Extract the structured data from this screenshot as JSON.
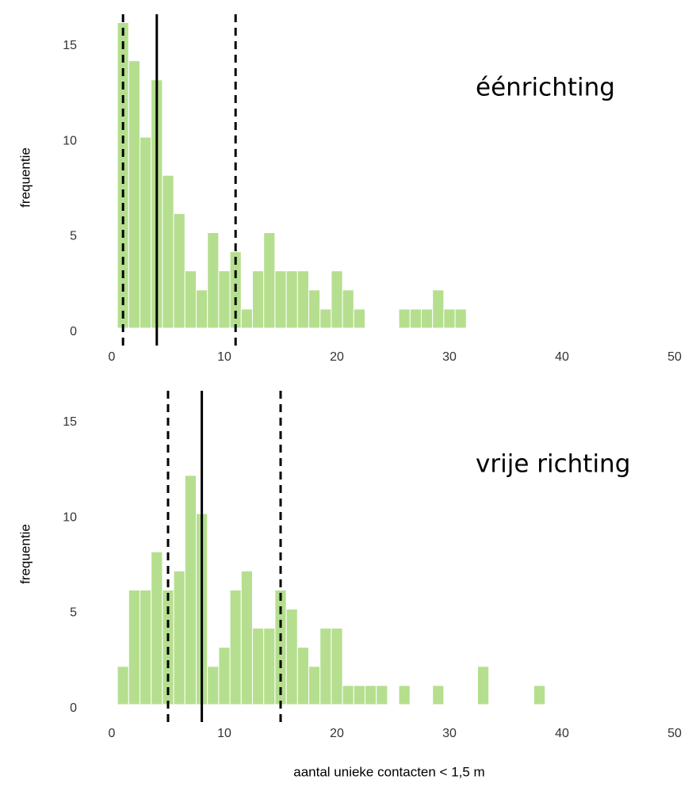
{
  "chart_data": [
    {
      "type": "histogram",
      "annotation": "éénrichting",
      "ylabel": "frequentie",
      "bins": [
        0.5,
        1.5,
        2.5,
        3.5,
        4.5,
        5.5,
        6.5,
        7.5,
        8.5,
        9.5,
        10.5,
        11.5,
        12.5,
        13.5,
        14.5,
        15.5,
        16.5,
        17.5,
        18.5,
        19.5,
        20.5,
        21.5,
        22.5,
        23.5,
        24.5,
        25.5,
        26.5,
        27.5,
        28.5,
        29.5,
        30.5,
        31.5
      ],
      "counts": [
        16,
        14,
        10,
        13,
        8,
        6,
        3,
        2,
        5,
        3,
        4,
        1,
        3,
        5,
        3,
        3,
        3,
        2,
        1,
        3,
        2,
        1,
        0,
        0,
        0,
        1,
        1,
        1,
        2,
        1,
        1
      ],
      "color": "#b5df8e",
      "vlines": [
        {
          "x": 1,
          "style": "dashed"
        },
        {
          "x": 4,
          "style": "solid"
        },
        {
          "x": 11,
          "style": "dashed"
        }
      ],
      "xlim": [
        0,
        50
      ],
      "xticks": [
        0,
        10,
        20,
        30,
        40,
        50
      ],
      "ylim": [
        0,
        16.6
      ],
      "yticks": [
        0,
        5,
        10,
        15
      ],
      "grid": false
    },
    {
      "type": "histogram",
      "annotation": "vrije richting",
      "ylabel": "frequentie",
      "xlabel": "aantal unieke contacten < 1,5 m",
      "bins": [
        0.5,
        1.5,
        2.5,
        3.5,
        4.5,
        5.5,
        6.5,
        7.5,
        8.5,
        9.5,
        10.5,
        11.5,
        12.5,
        13.5,
        14.5,
        15.5,
        16.5,
        17.5,
        18.5,
        19.5,
        20.5,
        21.5,
        22.5,
        23.5,
        24.5,
        25.5,
        26.5,
        27.5,
        28.5,
        29.5,
        30.5,
        31.5,
        32.5,
        33.5,
        34.5,
        35.5,
        36.5,
        37.5,
        38.5
      ],
      "counts": [
        2,
        6,
        6,
        8,
        6,
        7,
        12,
        10,
        2,
        3,
        6,
        7,
        4,
        4,
        6,
        5,
        3,
        2,
        4,
        4,
        1,
        1,
        1,
        1,
        0,
        1,
        0,
        0,
        1,
        0,
        0,
        0,
        2,
        0,
        0,
        0,
        0,
        1
      ],
      "color": "#b5df8e",
      "vlines": [
        {
          "x": 5,
          "style": "dashed"
        },
        {
          "x": 8,
          "style": "solid"
        },
        {
          "x": 15,
          "style": "dashed"
        }
      ],
      "xlim": [
        0,
        50
      ],
      "xticks": [
        0,
        10,
        20,
        30,
        40,
        50
      ],
      "ylim": [
        0,
        16.6
      ],
      "yticks": [
        0,
        5,
        10,
        15
      ],
      "grid": false
    }
  ]
}
